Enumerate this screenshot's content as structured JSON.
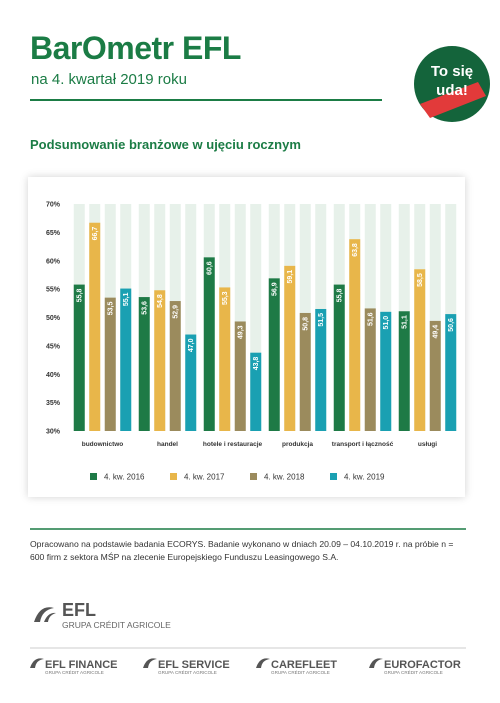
{
  "header": {
    "title": "BarOmetr EFL",
    "subtitle": "na 4. kwartał 2019 roku",
    "badge": [
      "To się",
      "uda!"
    ]
  },
  "section_title": "Podsumowanie branżowe w ujęciu rocznym",
  "chart_data": {
    "type": "bar",
    "categories": [
      "budownictwo",
      "handel",
      "hotele i restauracje",
      "produkcja",
      "transport i łączność",
      "usługi"
    ],
    "series": [
      {
        "name": "4. kw. 2016",
        "color": "#1e7a46",
        "values": [
          55.8,
          53.6,
          60.6,
          56.9,
          55.8,
          51.1
        ],
        "value_labels": [
          "55,8",
          "53,6",
          "60,6",
          "56,9",
          "55,8",
          "51,1"
        ]
      },
      {
        "name": "4. kw. 2017",
        "color": "#e8b64a",
        "values": [
          66.7,
          54.8,
          55.3,
          59.1,
          63.8,
          58.5
        ],
        "value_labels": [
          "66,7",
          "54,8",
          "55,3",
          "59,1",
          "63,8",
          "58,5"
        ]
      },
      {
        "name": "4. kw. 2018",
        "color": "#9b8b5d",
        "values": [
          53.5,
          52.9,
          49.3,
          50.8,
          51.6,
          49.4
        ],
        "value_labels": [
          "53,5",
          "52,9",
          "49,3",
          "50,8",
          "51,6",
          "49,4"
        ]
      },
      {
        "name": "4. kw. 2019",
        "color": "#1aa0b2",
        "values": [
          55.1,
          47.0,
          43.8,
          51.5,
          51.0,
          50.6
        ],
        "value_labels": [
          "55,1",
          "47,0",
          "43,8",
          "51,5",
          "51,0",
          "50,6"
        ]
      }
    ],
    "ylim": [
      30,
      70
    ],
    "yticks": [
      {
        "value": 30,
        "label": "30%"
      },
      {
        "value": 35,
        "label": "35%"
      },
      {
        "value": 40,
        "label": "40%"
      },
      {
        "value": 45,
        "label": "45%"
      },
      {
        "value": 50,
        "label": "50%"
      },
      {
        "value": 55,
        "label": "55%"
      },
      {
        "value": 60,
        "label": "60%"
      },
      {
        "value": 65,
        "label": "65%"
      },
      {
        "value": 70,
        "label": "70%"
      }
    ],
    "grid": false,
    "legend": "bottom"
  },
  "note": "Opracowano na podstawie badania ECORYS. Badanie wykonano w dniach 20.09 – 04.10.2019 r. na próbie n = 600 firm z sektora MŚP na zlecenie Europejskiego Funduszu Leasingowego S.A.",
  "footer": {
    "logo": {
      "name": "EFL",
      "group": "GRUPA CRÉDIT AGRICOLE"
    },
    "brands": [
      {
        "name": "EFL FINANCE",
        "group": "GRUPA CRÉDIT AGRICOLE"
      },
      {
        "name": "EFL SERVICE",
        "group": "GRUPA CRÉDIT AGRICOLE"
      },
      {
        "name": "CAREFLEET",
        "group": "GRUPA CRÉDIT AGRICOLE"
      },
      {
        "name": "EUROFACTOR",
        "group": "GRUPA CRÉDIT AGRICOLE"
      }
    ]
  }
}
